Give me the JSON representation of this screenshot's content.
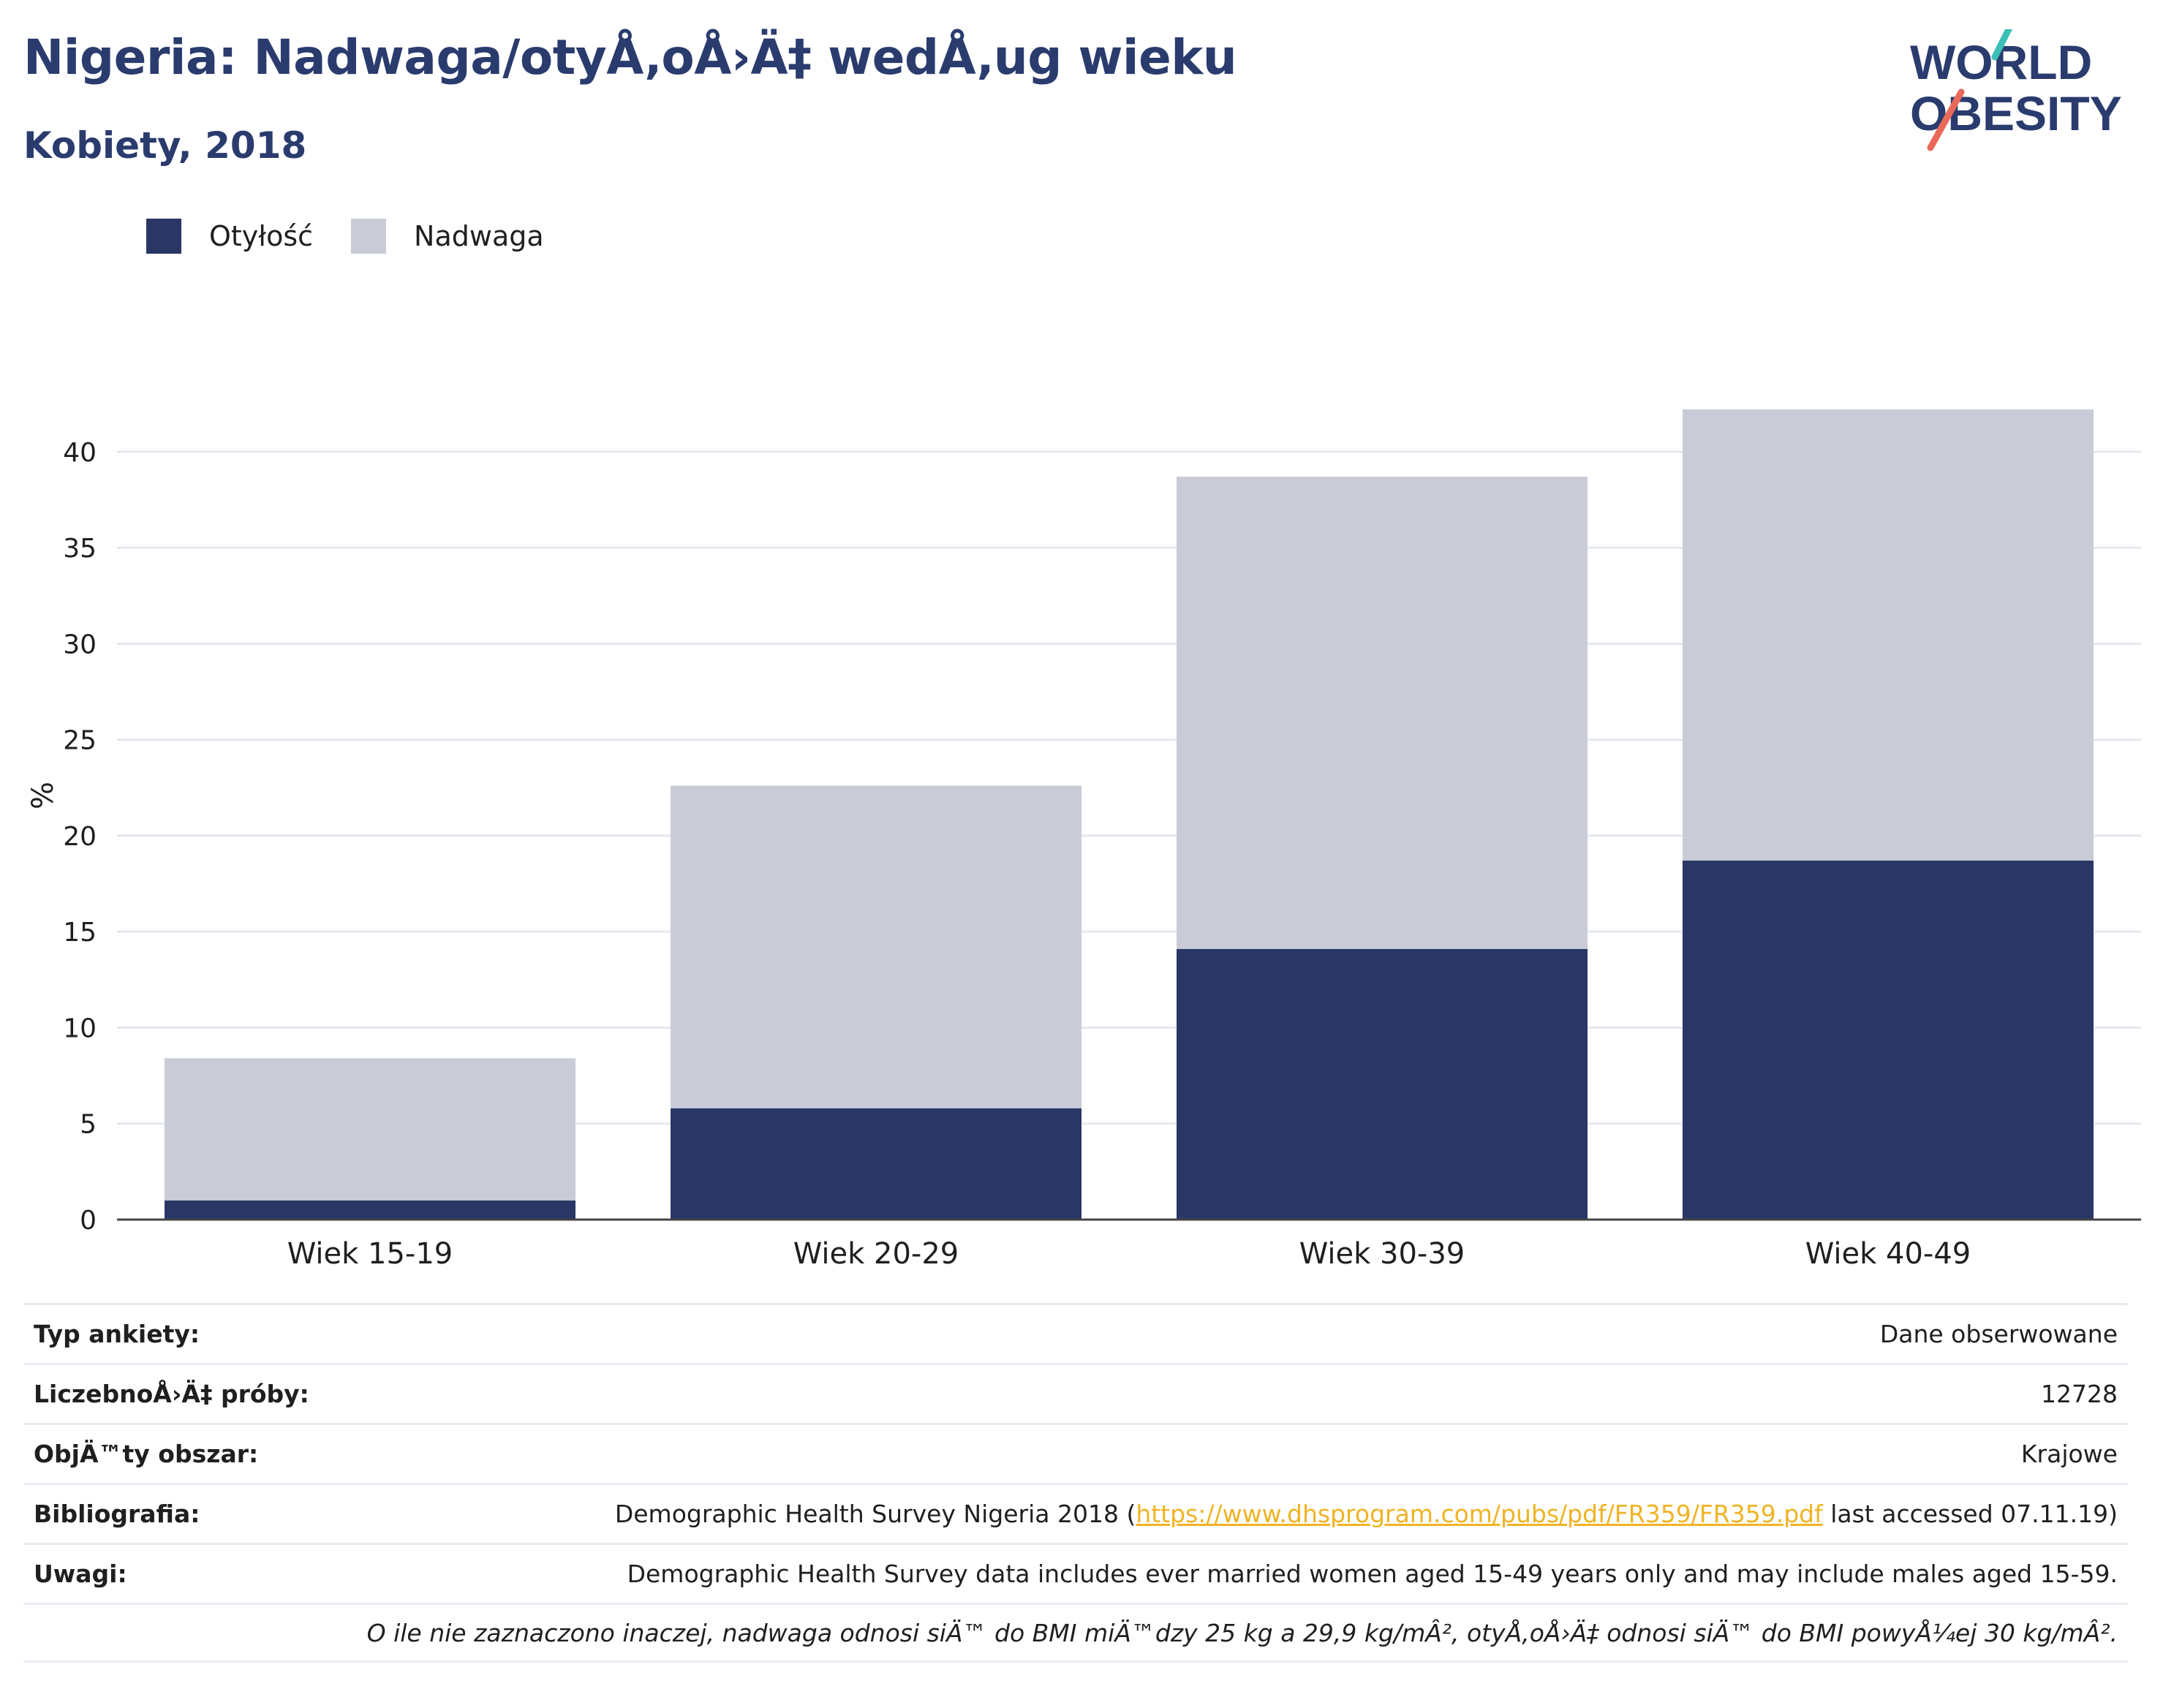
{
  "title": "Nigeria: Nadwaga/otyÅ‚oÅ›Ä‡ wedÅ‚ug wieku",
  "subtitle": "Kobiety, 2018",
  "logo": {
    "line1": "WORLD",
    "line2": "OBESITY"
  },
  "colors": {
    "title": "#2a3b6e",
    "obesity": "#2a3665",
    "overweight": "#c9ccd7",
    "grid": "#e6e8ef",
    "link": "#f0b323",
    "logo_teal": "#3cbfb6",
    "logo_coral": "#ea6a5a"
  },
  "legend": [
    {
      "label": "Otyłość",
      "color": "#2a3665"
    },
    {
      "label": "Nadwaga",
      "color": "#c9ccd7"
    }
  ],
  "chart_data": {
    "type": "bar",
    "stacked": true,
    "categories": [
      "Wiek 15-19",
      "Wiek 20-29",
      "Wiek 30-39",
      "Wiek 40-49"
    ],
    "series": [
      {
        "name": "Otyłość",
        "values": [
          1.0,
          5.8,
          14.1,
          18.7
        ]
      },
      {
        "name": "Nadwaga",
        "values": [
          7.4,
          16.8,
          24.6,
          23.5
        ]
      }
    ],
    "ylabel": "%",
    "xlabel": "",
    "ylim": [
      0,
      42.2
    ],
    "yticks": [
      0,
      5,
      10,
      15,
      20,
      25,
      30,
      35,
      40
    ],
    "grid": true,
    "legend_position": "top-left"
  },
  "meta": {
    "survey_type": {
      "label": "Typ ankiety:",
      "value": "Dane obserwowane"
    },
    "sample_size": {
      "label": "LiczebnoÅ›Ä‡ próby:",
      "value": "12728"
    },
    "area": {
      "label": "ObjÄ™ty obszar:",
      "value": "Krajowe"
    },
    "bibliography": {
      "label": "Bibliografia:",
      "prefix": "Demographic Health Survey Nigeria 2018 (",
      "link": "https://www.dhsprogram.com/pubs/pdf/FR359/FR359.pdf",
      "suffix": " last accessed 07.11.19)"
    },
    "notes": {
      "label": "Uwagi:",
      "value": "Demographic Health Survey data includes ever married women aged 15-49 years only and may include males aged 15-59."
    },
    "footnote": "O ile nie zaznaczono inaczej, nadwaga odnosi siÄ™ do BMI miÄ™dzy 25 kg a 29,9 kg/mÂ², otyÅ‚oÅ›Ä‡ odnosi siÄ™ do BMI powyÅ¼ej 30 kg/mÂ²."
  }
}
